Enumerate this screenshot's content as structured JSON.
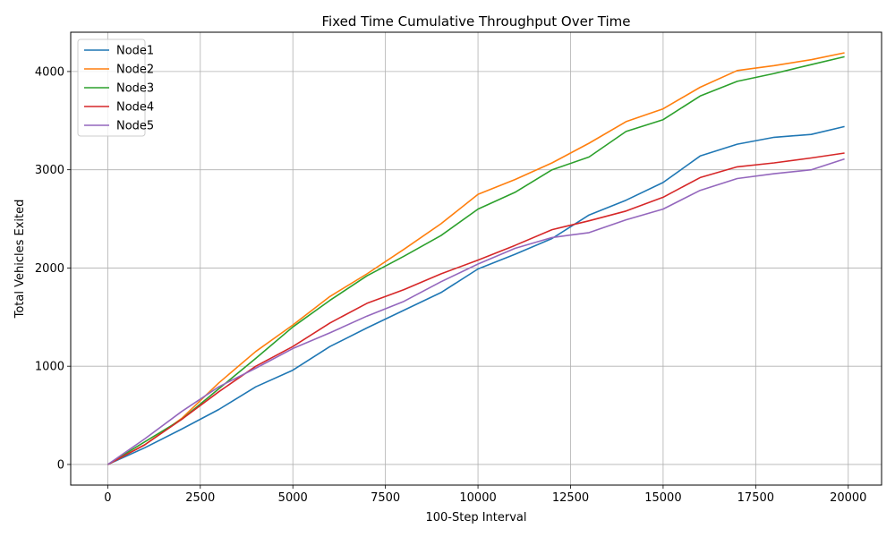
{
  "chart_data": {
    "type": "line",
    "title": "Fixed Time Cumulative Throughput Over Time",
    "xlabel": "100-Step Interval",
    "ylabel": "Total Vehicles Exited",
    "xlim": [
      -1000,
      20900
    ],
    "ylim": [
      -210,
      4400
    ],
    "x_ticks": [
      0,
      2500,
      5000,
      7500,
      10000,
      12500,
      15000,
      17500,
      20000
    ],
    "y_ticks": [
      0,
      1000,
      2000,
      3000,
      4000
    ],
    "grid": true,
    "legend": "top-left",
    "x": [
      0,
      1000,
      2000,
      3000,
      4000,
      5000,
      6000,
      7000,
      8000,
      9000,
      10000,
      11000,
      12000,
      13000,
      14000,
      15000,
      16000,
      17000,
      18000,
      19000,
      19900
    ],
    "series": [
      {
        "name": "Node1",
        "color": "#1f77b4",
        "values": [
          0,
          170,
          360,
          560,
          790,
          960,
          1200,
          1390,
          1570,
          1750,
          1990,
          2140,
          2300,
          2540,
          2690,
          2870,
          3140,
          3260,
          3330,
          3360,
          3440
        ]
      },
      {
        "name": "Node2",
        "color": "#ff7f0e",
        "values": [
          0,
          200,
          470,
          830,
          1150,
          1420,
          1710,
          1940,
          2190,
          2450,
          2750,
          2900,
          3070,
          3270,
          3490,
          3620,
          3840,
          4010,
          4060,
          4120,
          4190
        ]
      },
      {
        "name": "Node3",
        "color": "#2ca02c",
        "values": [
          0,
          230,
          460,
          770,
          1080,
          1400,
          1670,
          1920,
          2120,
          2330,
          2600,
          2770,
          3000,
          3130,
          3390,
          3510,
          3750,
          3900,
          3980,
          4070,
          4150
        ]
      },
      {
        "name": "Node4",
        "color": "#d62728",
        "values": [
          0,
          200,
          460,
          740,
          1000,
          1200,
          1440,
          1640,
          1780,
          1940,
          2080,
          2230,
          2390,
          2480,
          2580,
          2720,
          2920,
          3030,
          3070,
          3120,
          3170
        ]
      },
      {
        "name": "Node5",
        "color": "#9467bd",
        "values": [
          0,
          260,
          540,
          790,
          980,
          1180,
          1340,
          1510,
          1660,
          1860,
          2040,
          2200,
          2310,
          2360,
          2490,
          2600,
          2790,
          2910,
          2960,
          3000,
          3110
        ]
      }
    ]
  }
}
